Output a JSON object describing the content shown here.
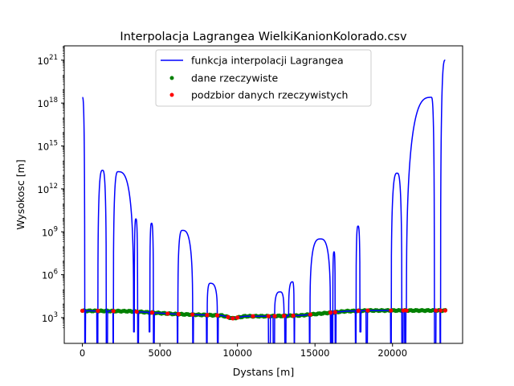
{
  "chart_data": {
    "type": "line",
    "title": "Interpolacja Lagrangea WielkiKanionKolorado.csv",
    "xlabel": "Dystans [m]",
    "ylabel": "Wysokosc [m]",
    "xlim": [
      -1170,
      24520
    ],
    "ylim_log10": [
      1.2,
      22.0
    ],
    "yscale": "log",
    "grid": false,
    "legend_position": "top-center",
    "x_ticks": [
      {
        "value": 0,
        "label": "0"
      },
      {
        "value": 5000,
        "label": "5000"
      },
      {
        "value": 10000,
        "label": "10000"
      },
      {
        "value": 15000,
        "label": "15000"
      },
      {
        "value": 20000,
        "label": "20000"
      }
    ],
    "y_ticks": [
      {
        "exp": 3,
        "base": "10",
        "sup": "3"
      },
      {
        "exp": 6,
        "base": "10",
        "sup": "6"
      },
      {
        "exp": 9,
        "base": "10",
        "sup": "9"
      },
      {
        "exp": 12,
        "base": "10",
        "sup": "12"
      },
      {
        "exp": 15,
        "base": "10",
        "sup": "15"
      },
      {
        "exp": 18,
        "base": "10",
        "sup": "18"
      },
      {
        "exp": 21,
        "base": "10",
        "sup": "21"
      }
    ],
    "series": [
      {
        "name": "funkcja interpolacji Lagrangea",
        "kind": "line",
        "color": "#0000ff",
        "x_min": 0,
        "x_max": 23400,
        "floor_log10": 1.2,
        "baseline_profile": [
          [
            0,
            3.48
          ],
          [
            3000,
            3.45
          ],
          [
            6000,
            3.25
          ],
          [
            7500,
            3.2
          ],
          [
            9000,
            3.15
          ],
          [
            9700,
            2.95
          ],
          [
            10500,
            3.1
          ],
          [
            12000,
            3.1
          ],
          [
            14000,
            3.15
          ],
          [
            15500,
            3.3
          ],
          [
            17000,
            3.45
          ],
          [
            18500,
            3.5
          ],
          [
            21000,
            3.5
          ],
          [
            23400,
            3.5
          ]
        ],
        "lobes_log10": [
          {
            "x_start": 0,
            "x_end": 150,
            "peak_x": 0,
            "peak": 18.4
          },
          {
            "x_start": 1000,
            "x_end": 1540,
            "peak_x": 1300,
            "peak": 13.3
          },
          {
            "x_start": 2000,
            "x_end": 3300,
            "peak_x": 2300,
            "peak": 13.2
          },
          {
            "x_start": 3350,
            "x_end": 3560,
            "peak_x": 3450,
            "peak": 9.9
          },
          {
            "x_start": 4350,
            "x_end": 4580,
            "peak_x": 4460,
            "peak": 9.6
          },
          {
            "x_start": 6160,
            "x_end": 7110,
            "peak_x": 6450,
            "peak": 9.1
          },
          {
            "x_start": 8050,
            "x_end": 8700,
            "peak_x": 8250,
            "peak": 5.4
          },
          {
            "x_start": 12400,
            "x_end": 13000,
            "peak_x": 12750,
            "peak": 4.8
          },
          {
            "x_start": 13300,
            "x_end": 13650,
            "peak_x": 13550,
            "peak": 5.5
          },
          {
            "x_start": 14680,
            "x_end": 15990,
            "peak_x": 15350,
            "peak": 8.5
          },
          {
            "x_start": 16150,
            "x_end": 16300,
            "peak_x": 16230,
            "peak": 7.6
          },
          {
            "x_start": 17650,
            "x_end": 17900,
            "peak_x": 17780,
            "peak": 9.4
          },
          {
            "x_start": 19920,
            "x_end": 20600,
            "peak_x": 20300,
            "peak": 13.1
          },
          {
            "x_start": 20900,
            "x_end": 22700,
            "peak_x": 22500,
            "peak": 18.4
          },
          {
            "x_start": 23100,
            "x_end": 23400,
            "peak_x": 23400,
            "peak": 21.0
          }
        ],
        "dips_log10": [
          {
            "x_start": 120,
            "x_end": 200,
            "min": 1.2
          },
          {
            "x_start": 930,
            "x_end": 1010,
            "min": 1.2
          },
          {
            "x_start": 1540,
            "x_end": 1620,
            "min": 1.2
          },
          {
            "x_start": 1970,
            "x_end": 2050,
            "min": 1.2
          },
          {
            "x_start": 3300,
            "x_end": 3350,
            "min": 2.0
          },
          {
            "x_start": 3560,
            "x_end": 3620,
            "min": 1.2
          },
          {
            "x_start": 4300,
            "x_end": 4360,
            "min": 2.0
          },
          {
            "x_start": 4580,
            "x_end": 4640,
            "min": 1.2
          },
          {
            "x_start": 6120,
            "x_end": 6180,
            "min": 1.2
          },
          {
            "x_start": 7100,
            "x_end": 7160,
            "min": 1.2
          },
          {
            "x_start": 8000,
            "x_end": 8060,
            "min": 1.2
          },
          {
            "x_start": 8700,
            "x_end": 8760,
            "min": 1.2
          },
          {
            "x_start": 12000,
            "x_end": 12120,
            "min": 1.2
          },
          {
            "x_start": 12300,
            "x_end": 12420,
            "min": 1.2
          },
          {
            "x_start": 13050,
            "x_end": 13130,
            "min": 1.2
          },
          {
            "x_start": 13600,
            "x_end": 13680,
            "min": 1.2
          },
          {
            "x_start": 14640,
            "x_end": 14700,
            "min": 1.2
          },
          {
            "x_start": 15990,
            "x_end": 16060,
            "min": 1.2
          },
          {
            "x_start": 16100,
            "x_end": 16160,
            "min": 1.2
          },
          {
            "x_start": 16300,
            "x_end": 16360,
            "min": 1.2
          },
          {
            "x_start": 17600,
            "x_end": 17660,
            "min": 1.2
          },
          {
            "x_start": 17900,
            "x_end": 17960,
            "min": 2.0
          },
          {
            "x_start": 18300,
            "x_end": 18380,
            "min": 1.2
          },
          {
            "x_start": 19880,
            "x_end": 19930,
            "min": 1.2
          },
          {
            "x_start": 20600,
            "x_end": 20680,
            "min": 1.2
          },
          {
            "x_start": 20780,
            "x_end": 20860,
            "min": 1.2
          },
          {
            "x_start": 22700,
            "x_end": 22800,
            "min": 1.2
          },
          {
            "x_start": 23060,
            "x_end": 23120,
            "min": 1.2
          }
        ]
      },
      {
        "name": "dane rzeczywiste",
        "kind": "scatter",
        "color": "#008000",
        "step": 100,
        "x_min": 0,
        "x_max": 23400,
        "jitter_log10": 0.03
      },
      {
        "name": "podzbior danych rzeczywistych",
        "kind": "scatter",
        "color": "#ff0000",
        "x": [
          0,
          1000,
          2000,
          3500,
          4500,
          5500,
          6200,
          7100,
          8050,
          8700,
          9400,
          9700,
          10000,
          11000,
          12000,
          12400,
          13000,
          13600,
          14700,
          16000,
          16300,
          17800,
          18400,
          19900,
          20700,
          20900,
          22800,
          23100,
          23400
        ]
      }
    ]
  }
}
